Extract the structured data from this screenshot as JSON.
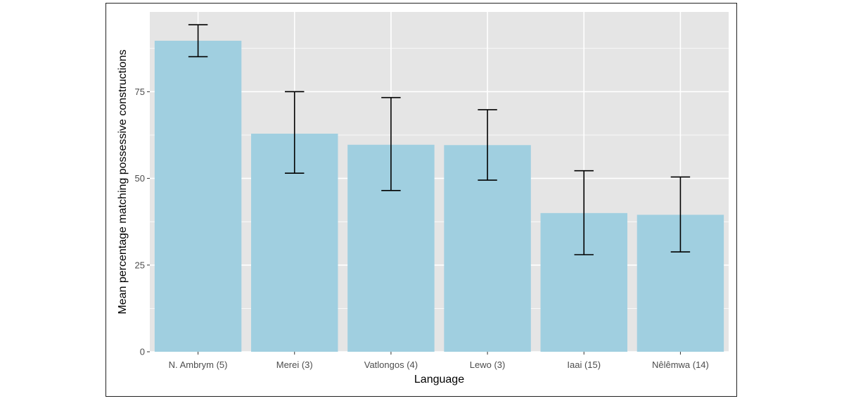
{
  "chart_data": {
    "type": "bar",
    "title": "",
    "xlabel": "Language",
    "ylabel": "Mean percentage matching possessive constructions",
    "categories": [
      "N. Ambrym (5)",
      "Merei (3)",
      "Vatlongos (4)",
      "Lewo (3)",
      "Iaai (15)",
      "Nêlêmwa (14)"
    ],
    "values": [
      89.7,
      62.9,
      59.7,
      59.6,
      40.0,
      39.5
    ],
    "error_low": [
      85.1,
      51.5,
      46.5,
      49.5,
      28.0,
      28.8
    ],
    "error_high": [
      94.3,
      75.0,
      73.3,
      69.8,
      52.2,
      50.4
    ],
    "ylim": [
      0,
      98
    ],
    "yticks": [
      0,
      25,
      50,
      75
    ],
    "grid": true,
    "colors": {
      "bar": "#a0cfe0",
      "panel": "#e5e5e5",
      "grid": "#ffffff",
      "error_bar": "#000000",
      "text": "#4d4d4d",
      "title_text": "#000000"
    }
  }
}
